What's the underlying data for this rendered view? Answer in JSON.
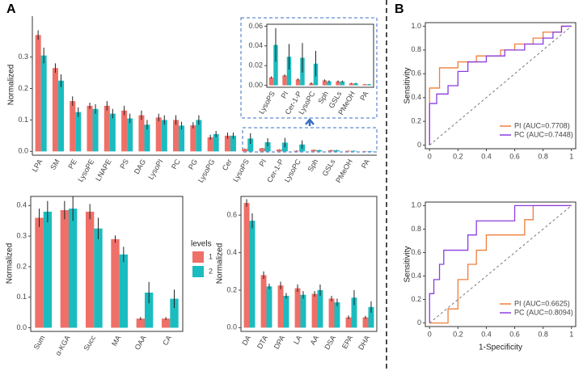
{
  "panel_labels": [
    "A",
    "B"
  ],
  "chart_data": [
    {
      "type": "bar",
      "ylabel": "Normalized",
      "categories": [
        "LPA",
        "SM",
        "PE",
        "LysoPE",
        "LNAPE",
        "PS",
        "DAG",
        "LysoPI",
        "PC",
        "PG",
        "LysoPG",
        "Cer",
        "LysoPS",
        "PI",
        "Cer-1-P",
        "LysoPC",
        "Sph",
        "GSLs",
        "PMeOH",
        "PA"
      ],
      "series": [
        {
          "name": "1",
          "color": "#ee7068",
          "values": [
            0.37,
            0.265,
            0.16,
            0.145,
            0.145,
            0.13,
            0.115,
            0.108,
            0.1,
            0.083,
            0.045,
            0.05,
            0.008,
            0.01,
            0.006,
            0.002,
            0.005,
            0.004,
            0.002,
            0.001
          ],
          "errors": [
            0.015,
            0.015,
            0.015,
            0.01,
            0.015,
            0.015,
            0.015,
            0.012,
            0.015,
            0.01,
            0.008,
            0.01,
            0.001,
            0.001,
            0.001,
            0.001,
            0.001,
            0.001,
            0.0005,
            0.0003
          ]
        },
        {
          "name": "2",
          "color": "#1bbcbf",
          "values": [
            0.305,
            0.225,
            0.125,
            0.135,
            0.12,
            0.105,
            0.085,
            0.1,
            0.082,
            0.1,
            0.055,
            0.05,
            0.041,
            0.029,
            0.028,
            0.022,
            0.004,
            0.004,
            0.002,
            0.001
          ],
          "errors": [
            0.025,
            0.02,
            0.015,
            0.015,
            0.015,
            0.015,
            0.015,
            0.015,
            0.012,
            0.015,
            0.01,
            0.01,
            0.017,
            0.013,
            0.015,
            0.013,
            0.001,
            0.0008,
            0.0005,
            0.0003
          ]
        }
      ],
      "ylim": [
        -0.012,
        0.43
      ],
      "yticks": [
        {
          "value": 0,
          "label": "0.0"
        },
        0.1,
        0.2,
        0.3
      ],
      "inset": {
        "ylim": [
          -0.002,
          0.062
        ],
        "yticks": [
          {
            "value": 0,
            "label": "0.00"
          },
          {
            "value": 0.02,
            "label": "0.02"
          },
          {
            "value": 0.04,
            "label": "0.04"
          },
          {
            "value": 0.06,
            "label": "0.06"
          }
        ]
      }
    },
    {
      "type": "bar",
      "ylabel": "Normalized",
      "legend_title": "levels",
      "categories": [
        "Sum",
        "α-KGA",
        "Succ",
        "MA",
        "OAA",
        "CA"
      ],
      "series": [
        {
          "name": "1",
          "color": "#ee7068",
          "values": [
            0.36,
            0.385,
            0.38,
            0.29,
            0.03,
            0.03
          ],
          "errors": [
            0.03,
            0.03,
            0.025,
            0.012,
            0.005,
            0.005
          ]
        },
        {
          "name": "2",
          "color": "#1bbcbf",
          "values": [
            0.38,
            0.39,
            0.325,
            0.24,
            0.115,
            0.095
          ],
          "errors": [
            0.035,
            0.04,
            0.035,
            0.025,
            0.035,
            0.03
          ]
        }
      ],
      "ylim": [
        -0.012,
        0.43
      ],
      "yticks": [
        {
          "value": 0,
          "label": "0.0"
        },
        0.1,
        0.2,
        0.3,
        0.4
      ]
    },
    {
      "type": "bar",
      "ylabel": "Normalized",
      "categories": [
        "DA",
        "DTA",
        "DPA",
        "LA",
        "AA",
        "DSA",
        "EPA",
        "DHA"
      ],
      "series": [
        {
          "name": "1",
          "color": "#ee7068",
          "values": [
            0.665,
            0.28,
            0.225,
            0.21,
            0.18,
            0.155,
            0.055,
            0.055
          ],
          "errors": [
            0.02,
            0.02,
            0.02,
            0.02,
            0.015,
            0.015,
            0.01,
            0.008
          ]
        },
        {
          "name": "2",
          "color": "#1bbcbf",
          "values": [
            0.57,
            0.22,
            0.17,
            0.175,
            0.2,
            0.135,
            0.16,
            0.11
          ],
          "errors": [
            0.04,
            0.015,
            0.015,
            0.02,
            0.03,
            0.02,
            0.04,
            0.03
          ]
        }
      ],
      "ylim": [
        -0.02,
        0.7
      ],
      "yticks": [
        {
          "value": 0,
          "label": "0.0"
        },
        0.2,
        0.4,
        0.6
      ]
    },
    {
      "type": "roc",
      "ylabel": "Sensitivity",
      "series": [
        {
          "name": "PI (AUC=0.7708)",
          "color": "#f07f3c",
          "x": [
            0,
            0,
            0.07,
            0.07,
            0.2,
            0.2,
            0.33,
            0.33,
            0.5,
            0.5,
            0.6,
            0.6,
            0.73,
            0.73,
            0.8,
            0.8,
            0.93,
            0.93,
            1
          ],
          "y": [
            0,
            0.48,
            0.48,
            0.65,
            0.65,
            0.7,
            0.7,
            0.75,
            0.75,
            0.8,
            0.8,
            0.85,
            0.85,
            0.9,
            0.9,
            0.95,
            0.95,
            1,
            1
          ]
        },
        {
          "name": "PC (AUC=0.7448)",
          "color": "#8a3ee0",
          "x": [
            0,
            0,
            0.05,
            0.05,
            0.13,
            0.13,
            0.2,
            0.2,
            0.27,
            0.27,
            0.4,
            0.4,
            0.53,
            0.53,
            0.67,
            0.67,
            0.8,
            0.8,
            0.87,
            0.87,
            0.93,
            0.93,
            1
          ],
          "y": [
            0,
            0.35,
            0.35,
            0.43,
            0.43,
            0.5,
            0.5,
            0.62,
            0.62,
            0.7,
            0.7,
            0.75,
            0.75,
            0.8,
            0.8,
            0.85,
            0.85,
            0.9,
            0.9,
            0.95,
            0.95,
            1,
            1
          ]
        }
      ],
      "xlim": [
        -0.03,
        1.03
      ],
      "ylim": [
        -0.03,
        1.03
      ],
      "xticks": [
        0,
        0.2,
        0.4,
        0.6,
        0.8,
        1
      ],
      "yticks": [
        0,
        0.2,
        0.4,
        0.6,
        0.8,
        {
          "value": 1,
          "label": "1.0"
        }
      ]
    },
    {
      "type": "roc",
      "ylabel": "Sensitivity",
      "xlabel": "1-Specificity",
      "series": [
        {
          "name": "PI (AUC=0.6625)",
          "color": "#f07f3c",
          "x": [
            0,
            0.13,
            0.13,
            0.2,
            0.2,
            0.27,
            0.27,
            0.33,
            0.33,
            0.4,
            0.4,
            0.67,
            0.67,
            0.73,
            0.73,
            1
          ],
          "y": [
            0,
            0,
            0.12,
            0.12,
            0.37,
            0.37,
            0.5,
            0.5,
            0.62,
            0.62,
            0.75,
            0.75,
            0.88,
            0.88,
            1,
            1
          ]
        },
        {
          "name": "PC (AUC=0.8094)",
          "color": "#8a3ee0",
          "x": [
            0,
            0,
            0.03,
            0.03,
            0.07,
            0.07,
            0.1,
            0.1,
            0.27,
            0.27,
            0.33,
            0.33,
            0.6,
            0.6,
            1
          ],
          "y": [
            0,
            0.25,
            0.25,
            0.37,
            0.37,
            0.5,
            0.5,
            0.62,
            0.62,
            0.75,
            0.75,
            0.87,
            0.87,
            1,
            1
          ]
        }
      ],
      "xlim": [
        -0.03,
        1.03
      ],
      "ylim": [
        -0.03,
        1.03
      ],
      "xticks": [
        0,
        0.2,
        0.4,
        0.6,
        0.8,
        1
      ],
      "yticks": [
        0,
        0.2,
        0.4,
        0.6,
        0.8,
        {
          "value": 1,
          "label": "1.0"
        }
      ]
    }
  ]
}
